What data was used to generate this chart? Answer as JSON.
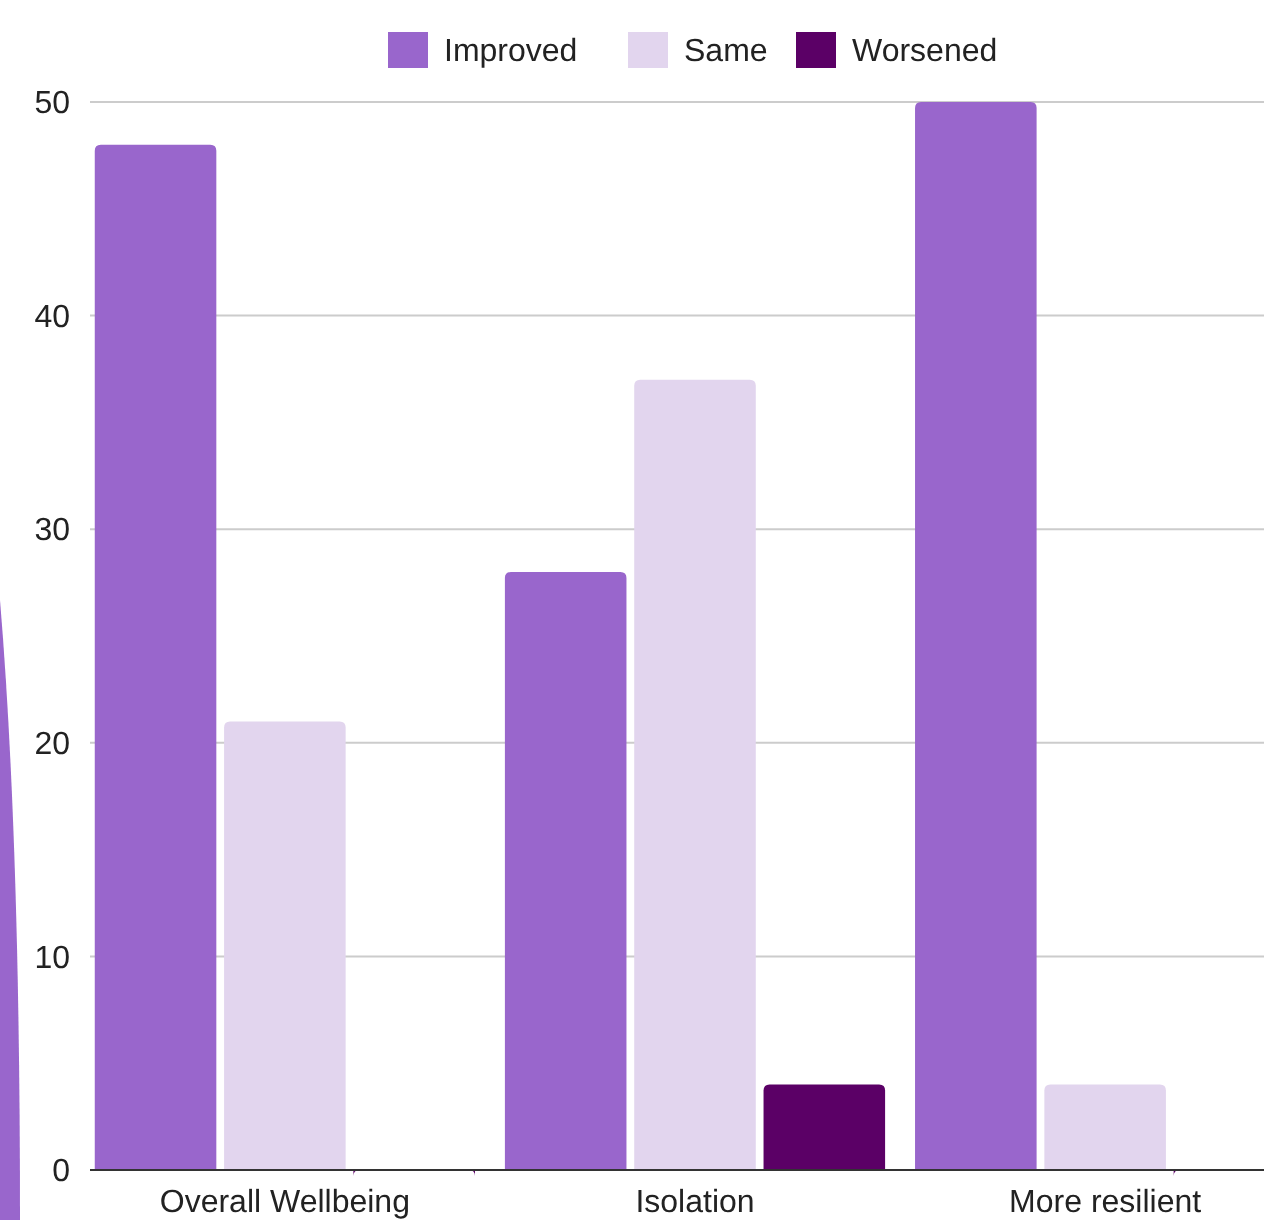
{
  "chart_data": {
    "type": "bar",
    "categories": [
      "Overall Wellbeing",
      "Isolation",
      "More resilient"
    ],
    "series": [
      {
        "name": "Improved",
        "color": "#9966cc",
        "values": [
          48,
          28,
          50
        ]
      },
      {
        "name": "Same",
        "color": "#e2d5ee",
        "values": [
          21,
          37,
          4
        ]
      },
      {
        "name": "Worsened",
        "color": "#5b0066",
        "values": [
          0,
          4,
          0
        ]
      }
    ],
    "ylim": [
      0,
      50
    ],
    "yticks": [
      0,
      10,
      20,
      30,
      40,
      50
    ],
    "grid": "y",
    "legend": "top"
  }
}
